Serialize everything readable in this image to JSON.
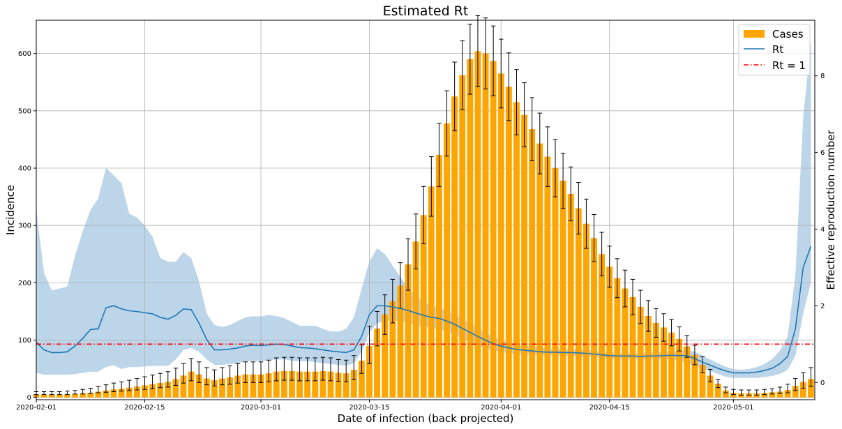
{
  "chart_data": {
    "type": "bar",
    "title": "Estimated Rt",
    "xlabel": "Date of infection (back projected)",
    "ylabel": "Incidence",
    "y2label": "Effective reproduction number",
    "x_start": "2020-02-01",
    "x_ticks": [
      "2020-02-01",
      "2020-02-15",
      "2020-03-01",
      "2020-03-15",
      "2020-04-01",
      "2020-04-15",
      "2020-05-01"
    ],
    "ylim": [
      -4,
      658
    ],
    "y_ticks": [
      0,
      100,
      200,
      300,
      400,
      500,
      600
    ],
    "y2lim": [
      -0.45,
      9.45
    ],
    "y2_ticks": [
      0,
      2,
      4,
      6,
      8
    ],
    "grid": true,
    "legend_position": "top-right",
    "colors": {
      "cases": "#ffa500",
      "rt": "#1f77b4",
      "band": "#b8d3e8",
      "threshold": "#ff0000",
      "errorbar": "#000000"
    },
    "series": [
      {
        "name": "Cases",
        "kind": "bar",
        "values": [
          5,
          5,
          5,
          5,
          5,
          6,
          7,
          8,
          10,
          12,
          14,
          15,
          17,
          19,
          21,
          23,
          25,
          27,
          32,
          38,
          45,
          40,
          33,
          30,
          33,
          35,
          38,
          40,
          40,
          40,
          42,
          45,
          46,
          46,
          45,
          45,
          45,
          46,
          45,
          43,
          42,
          48,
          64,
          90,
          120,
          145,
          168,
          195,
          232,
          272,
          318,
          368,
          423,
          478,
          525,
          562,
          590,
          604,
          600,
          587,
          565,
          542,
          515,
          493,
          468,
          443,
          420,
          400,
          378,
          355,
          330,
          303,
          278,
          250,
          228,
          208,
          190,
          175,
          158,
          142,
          130,
          122,
          113,
          102,
          89,
          74,
          57,
          38,
          24,
          12,
          8,
          7,
          7,
          7,
          8,
          9,
          10,
          13,
          20,
          27,
          32
        ],
        "error_low": [
          0,
          0,
          0,
          0,
          0,
          0,
          1,
          1,
          2,
          3,
          4,
          4,
          5,
          6,
          7,
          8,
          8,
          9,
          11,
          13,
          16,
          14,
          11,
          10,
          11,
          12,
          13,
          14,
          14,
          14,
          15,
          16,
          16,
          16,
          16,
          16,
          16,
          16,
          16,
          15,
          15,
          17,
          22,
          31,
          30,
          35,
          38,
          40,
          45,
          48,
          50,
          52,
          55,
          57,
          60,
          60,
          61,
          62,
          62,
          61,
          60,
          59,
          57,
          56,
          55,
          53,
          52,
          50,
          48,
          47,
          45,
          43,
          41,
          38,
          36,
          34,
          32,
          31,
          29,
          27,
          25,
          24,
          23,
          21,
          19,
          17,
          14,
          11,
          7,
          4,
          3,
          3,
          3,
          3,
          3,
          3,
          3,
          5,
          8,
          11,
          13
        ],
        "error_high": [
          5,
          5,
          5,
          5,
          6,
          6,
          7,
          8,
          9,
          10,
          11,
          12,
          13,
          14,
          15,
          16,
          17,
          18,
          19,
          21,
          23,
          22,
          19,
          18,
          19,
          20,
          21,
          22,
          22,
          22,
          23,
          24,
          24,
          24,
          24,
          24,
          24,
          24,
          24,
          23,
          23,
          25,
          28,
          34,
          30,
          34,
          38,
          40,
          45,
          48,
          50,
          52,
          55,
          57,
          60,
          60,
          61,
          62,
          62,
          61,
          60,
          59,
          57,
          56,
          55,
          53,
          52,
          50,
          48,
          47,
          45,
          43,
          41,
          38,
          36,
          34,
          32,
          31,
          29,
          27,
          25,
          24,
          23,
          21,
          19,
          17,
          14,
          11,
          7,
          6,
          6,
          6,
          6,
          6,
          6,
          6,
          8,
          10,
          13,
          16,
          20
        ]
      },
      {
        "name": "Rt",
        "kind": "line",
        "axis": "right",
        "values": [
          1.05,
          0.85,
          0.78,
          0.78,
          0.8,
          0.95,
          1.15,
          1.38,
          1.4,
          1.95,
          2.0,
          1.92,
          1.87,
          1.85,
          1.82,
          1.79,
          1.7,
          1.65,
          1.75,
          1.92,
          1.9,
          1.55,
          1.12,
          0.85,
          0.85,
          0.87,
          0.9,
          0.95,
          0.97,
          0.96,
          0.98,
          1.0,
          0.99,
          0.95,
          0.91,
          0.9,
          0.88,
          0.85,
          0.82,
          0.8,
          0.78,
          0.85,
          1.2,
          1.77,
          2.0,
          2.0,
          1.97,
          1.93,
          1.88,
          1.81,
          1.75,
          1.7,
          1.67,
          1.6,
          1.52,
          1.41,
          1.31,
          1.2,
          1.1,
          1.01,
          0.95,
          0.9,
          0.86,
          0.84,
          0.82,
          0.8,
          0.79,
          0.79,
          0.78,
          0.78,
          0.77,
          0.76,
          0.74,
          0.72,
          0.7,
          0.69,
          0.69,
          0.69,
          0.68,
          0.69,
          0.69,
          0.7,
          0.71,
          0.7,
          0.7,
          0.62,
          0.53,
          0.45,
          0.37,
          0.3,
          0.25,
          0.25,
          0.25,
          0.27,
          0.31,
          0.37,
          0.49,
          0.68,
          1.4,
          3.0,
          3.55
        ],
        "ci_low": [
          0.25,
          0.2,
          0.2,
          0.2,
          0.2,
          0.22,
          0.25,
          0.28,
          0.28,
          0.4,
          0.45,
          0.35,
          0.4,
          0.4,
          0.42,
          0.43,
          0.43,
          0.43,
          0.6,
          0.85,
          0.9,
          0.8,
          0.6,
          0.46,
          0.46,
          0.48,
          0.5,
          0.55,
          0.56,
          0.56,
          0.58,
          0.6,
          0.6,
          0.57,
          0.55,
          0.55,
          0.53,
          0.5,
          0.48,
          0.46,
          0.44,
          0.5,
          0.8,
          1.3,
          1.55,
          1.6,
          1.62,
          1.6,
          1.55,
          1.5,
          1.45,
          1.42,
          1.39,
          1.32,
          1.25,
          1.15,
          1.06,
          0.97,
          0.89,
          0.83,
          0.8,
          0.76,
          0.74,
          0.73,
          0.72,
          0.71,
          0.71,
          0.7,
          0.7,
          0.69,
          0.68,
          0.68,
          0.66,
          0.64,
          0.62,
          0.61,
          0.61,
          0.61,
          0.6,
          0.6,
          0.6,
          0.6,
          0.6,
          0.57,
          0.5,
          0.43,
          0.36,
          0.3,
          0.22,
          0.15,
          0.12,
          0.12,
          0.12,
          0.12,
          0.14,
          0.17,
          0.22,
          0.33,
          0.7,
          1.8,
          2.6
        ],
        "ci_high": [
          4.5,
          2.85,
          2.4,
          2.45,
          2.5,
          3.3,
          3.95,
          4.5,
          4.8,
          5.6,
          5.4,
          5.2,
          4.4,
          4.3,
          4.1,
          3.8,
          3.25,
          3.15,
          3.15,
          3.4,
          3.25,
          2.65,
          1.8,
          1.5,
          1.45,
          1.5,
          1.6,
          1.7,
          1.73,
          1.72,
          1.76,
          1.73,
          1.68,
          1.58,
          1.48,
          1.48,
          1.48,
          1.4,
          1.33,
          1.33,
          1.4,
          1.7,
          2.45,
          3.15,
          3.5,
          3.35,
          3.05,
          2.75,
          2.45,
          2.25,
          2.1,
          2.0,
          1.95,
          1.87,
          1.77,
          1.66,
          1.54,
          1.42,
          1.3,
          1.19,
          1.1,
          1.04,
          1.0,
          0.96,
          0.93,
          0.91,
          0.89,
          0.88,
          0.87,
          0.87,
          0.86,
          0.85,
          0.83,
          0.81,
          0.79,
          0.78,
          0.77,
          0.77,
          0.76,
          0.78,
          0.79,
          0.8,
          0.81,
          0.82,
          0.85,
          0.8,
          0.7,
          0.6,
          0.5,
          0.41,
          0.35,
          0.33,
          0.35,
          0.4,
          0.48,
          0.61,
          0.83,
          1.2,
          2.8,
          6.9,
          8.9
        ]
      },
      {
        "name": "Rt = 1",
        "kind": "hline",
        "axis": "right",
        "value": 1.0
      }
    ]
  }
}
